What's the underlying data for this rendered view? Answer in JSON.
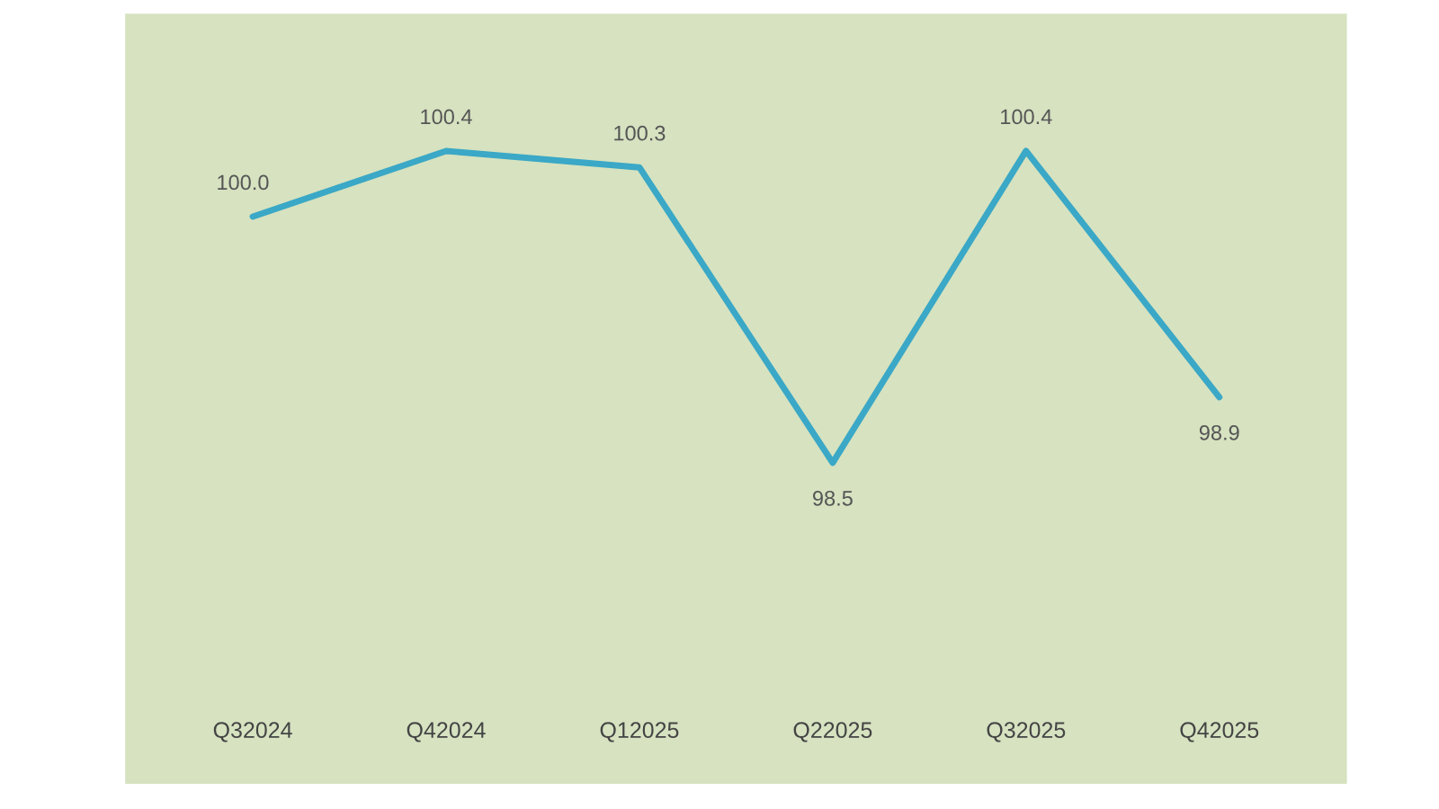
{
  "chart_data": {
    "type": "line",
    "categories": [
      "Q32024",
      "Q42024",
      "Q12025",
      "Q22025",
      "Q32025",
      "Q42025"
    ],
    "series": [
      {
        "color": "#3aa8c6",
        "values": [
          100.0,
          100.4,
          100.3,
          98.5,
          100.4,
          98.9
        ],
        "value_labels": [
          "100.0",
          "100.4",
          "100.3",
          "98.5",
          "100.4",
          "98.9"
        ]
      }
    ],
    "grid": false,
    "marker": "none",
    "line_style": "solid",
    "tick_labels": "x"
  }
}
